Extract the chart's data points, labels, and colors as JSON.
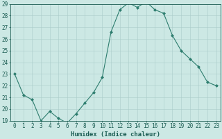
{
  "x": [
    0,
    1,
    2,
    3,
    4,
    5,
    6,
    7,
    8,
    9,
    10,
    11,
    12,
    13,
    14,
    15,
    16,
    17,
    18,
    19,
    20,
    21,
    22,
    23
  ],
  "y": [
    23,
    21.2,
    20.8,
    19.0,
    19.8,
    19.2,
    18.8,
    19.6,
    20.5,
    21.4,
    22.7,
    26.6,
    28.5,
    29.1,
    28.7,
    29.2,
    28.5,
    28.2,
    26.3,
    25.0,
    24.3,
    23.6,
    22.3,
    22.0
  ],
  "line_color": "#2d7d6e",
  "marker": "D",
  "marker_size": 2.0,
  "bg_color": "#cce8e4",
  "grid_color": "#aaccca",
  "xlabel": "Humidex (Indice chaleur)",
  "ylim": [
    19,
    29
  ],
  "xlim": [
    -0.5,
    23.5
  ],
  "yticks": [
    19,
    20,
    21,
    22,
    23,
    24,
    25,
    26,
    27,
    28,
    29
  ],
  "xticks": [
    0,
    1,
    2,
    3,
    4,
    5,
    6,
    7,
    8,
    9,
    10,
    11,
    12,
    13,
    14,
    15,
    16,
    17,
    18,
    19,
    20,
    21,
    22,
    23
  ],
  "tick_label_fontsize": 5.5,
  "xlabel_fontsize": 6.5,
  "tick_color": "#1a5c52",
  "axis_color": "#1a5c52",
  "linewidth": 0.8
}
